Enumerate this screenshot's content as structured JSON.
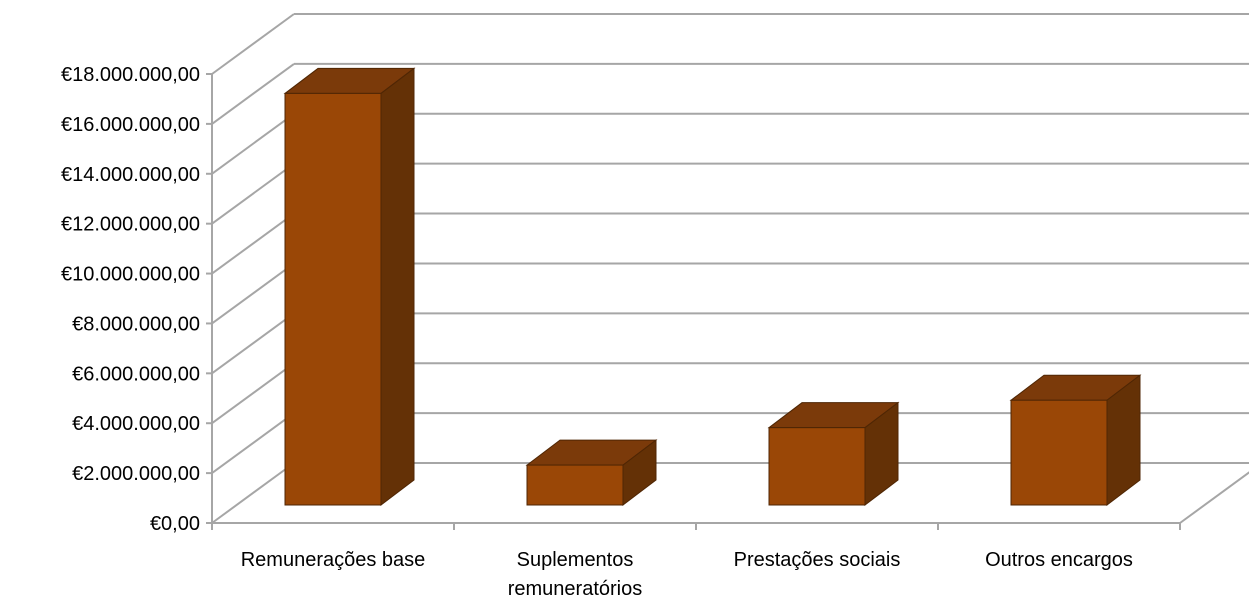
{
  "chart_data": {
    "type": "bar",
    "title": "",
    "xlabel": "",
    "ylabel": "",
    "categories": [
      [
        "Remunerações base"
      ],
      [
        "Suplementos",
        "remuneratórios"
      ],
      [
        "Prestações sociais"
      ],
      [
        "Outros encargos"
      ]
    ],
    "values": [
      16500000,
      1600000,
      3100000,
      4200000
    ],
    "ylim": [
      0,
      18000000
    ],
    "y_ticks": [
      0,
      2000000,
      4000000,
      6000000,
      8000000,
      10000000,
      12000000,
      14000000,
      16000000,
      18000000
    ],
    "y_tick_labels": [
      "€0,00",
      "€2.000.000,00",
      "€4.000.000,00",
      "€6.000.000,00",
      "€8.000.000,00",
      "€10.000.000,00",
      "€12.000.000,00",
      "€14.000.000,00",
      "€16.000.000,00",
      "€18.000.000,00"
    ],
    "grid": true,
    "legend": "none",
    "style": "3d-column",
    "colors": {
      "bar_front": "#9a4706",
      "bar_top": "#7b3a0a",
      "bar_side": "#643106",
      "bar_edge": "#4f2604",
      "grid": "#a6a6a6"
    }
  }
}
